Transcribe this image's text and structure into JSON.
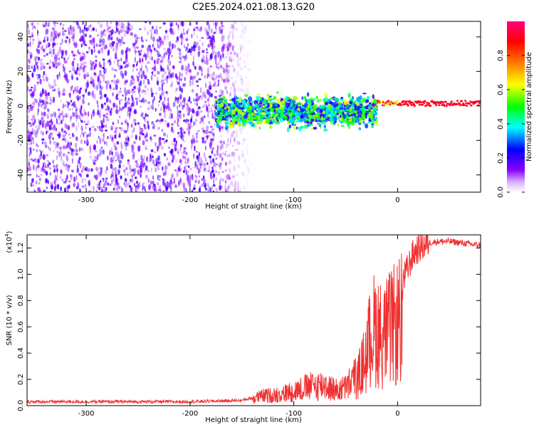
{
  "figure": {
    "title": "C2E5.2024.021.08.13.G20"
  },
  "chart_data": [
    {
      "type": "heatmap",
      "title": "C2E5.2024.021.08.13.G20",
      "xlabel": "Height of straight line (km)",
      "ylabel": "Frequency (Hz)",
      "xlim": [
        -357,
        80
      ],
      "ylim": [
        -50,
        49
      ],
      "xticks": [
        -300,
        -200,
        -100,
        0
      ],
      "yticks": [
        -40,
        -20,
        0,
        20,
        40
      ],
      "colorbar": {
        "label": "Normalized spectral amplitude",
        "range": [
          0.0,
          1.0
        ],
        "ticks": [
          0.0,
          0.2,
          0.4,
          0.6,
          0.8
        ],
        "colormap": [
          "#ffffff",
          "#8a00ff",
          "#0000ff",
          "#00ffff",
          "#00ff00",
          "#ffff00",
          "#ff8000",
          "#ff0000",
          "#ff0080"
        ]
      },
      "regions": [
        {
          "x_range": [
            -357,
            -140
          ],
          "freq_range": [
            -50,
            49
          ],
          "amplitude": 0.15,
          "note": "broadband noise"
        },
        {
          "x_range": [
            -175,
            -20
          ],
          "freq_range": [
            -15,
            8
          ],
          "amplitude": 0.45,
          "note": "signal band"
        },
        {
          "x_range": [
            -20,
            80
          ],
          "freq_range": [
            0,
            3
          ],
          "amplitude": 0.95,
          "note": "narrow carrier line"
        }
      ]
    },
    {
      "type": "line",
      "xlabel": "Height of straight line (km)",
      "ylabel": "SNR (10 * v/v)",
      "multiplier_label": "(x10",
      "multiplier_exp": "4",
      "xlim": [
        -357,
        80
      ],
      "ylim": [
        0.0,
        1.3
      ],
      "xticks": [
        -300,
        -200,
        -100,
        0
      ],
      "yticks": [
        0.0,
        0.2,
        0.4,
        0.6,
        0.8,
        1.0,
        1.2
      ],
      "color": "#f03030",
      "x": [
        -357,
        -300,
        -250,
        -200,
        -150,
        -130,
        -110,
        -90,
        -70,
        -60,
        -50,
        -40,
        -35,
        -30,
        -25,
        -20,
        -15,
        -10,
        -5,
        0,
        5,
        10,
        15,
        20,
        25,
        30,
        40,
        50,
        60,
        70,
        80
      ],
      "y": [
        0.03,
        0.03,
        0.03,
        0.03,
        0.04,
        0.08,
        0.1,
        0.15,
        0.18,
        0.13,
        0.15,
        0.25,
        0.4,
        0.55,
        0.8,
        0.85,
        0.75,
        0.8,
        0.85,
        0.9,
        0.95,
        1.05,
        1.15,
        1.2,
        1.22,
        1.24,
        1.25,
        1.25,
        1.24,
        1.23,
        1.22
      ]
    }
  ]
}
